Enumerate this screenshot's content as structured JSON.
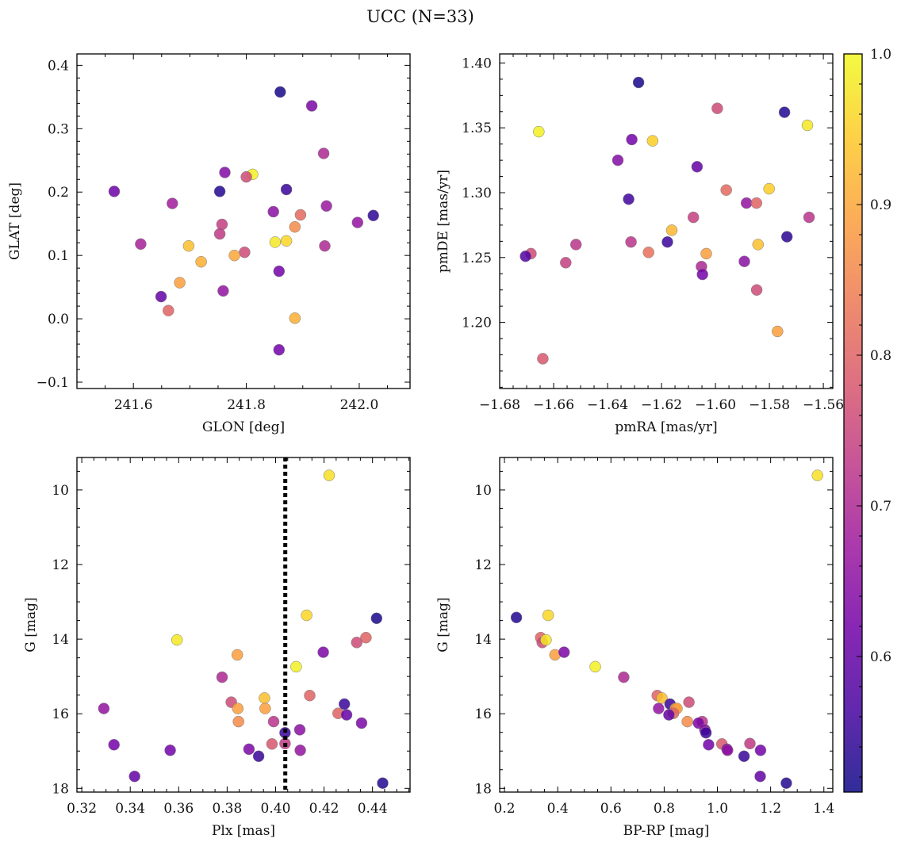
{
  "suptitle": "UCC (N=33)",
  "colorbar": {
    "vmin": 0.51,
    "vmax": 1.0,
    "ticks": [
      0.6,
      0.7,
      0.8,
      0.9,
      1.0
    ],
    "tick_labels": [
      "0.6",
      "0.7",
      "0.8",
      "0.9",
      "1.0"
    ],
    "colormap": "plasma",
    "stops": [
      "#0d0887",
      "#46039f",
      "#7201a8",
      "#9c179e",
      "#bd3786",
      "#d8576b",
      "#ed7953",
      "#fb9f3a",
      "#fdca26",
      "#f0f921"
    ]
  },
  "chart_data": [
    {
      "type": "scatter",
      "xlabel": "GLON [deg]",
      "ylabel": "GLAT [deg]",
      "xlim": [
        241.5,
        242.09
      ],
      "ylim": [
        -0.11,
        0.418
      ],
      "xticks": [
        241.6,
        241.8,
        242.0
      ],
      "xtick_labels": [
        "241.6",
        "241.8",
        "242.0"
      ],
      "yticks": [
        -0.1,
        0.0,
        0.1,
        0.2,
        0.3,
        0.4
      ],
      "ytick_labels": [
        "−0.1",
        "0.0",
        "0.1",
        "0.2",
        "0.3",
        "0.4"
      ],
      "y_inverted": false,
      "points": [
        {
          "x": 241.86,
          "y": 0.358,
          "c": 0.52
        },
        {
          "x": 241.916,
          "y": 0.336,
          "c": 0.63
        },
        {
          "x": 241.937,
          "y": 0.261,
          "c": 0.7
        },
        {
          "x": 241.762,
          "y": 0.231,
          "c": 0.64
        },
        {
          "x": 241.811,
          "y": 0.228,
          "c": 0.99
        },
        {
          "x": 241.8,
          "y": 0.224,
          "c": 0.76
        },
        {
          "x": 241.871,
          "y": 0.204,
          "c": 0.55
        },
        {
          "x": 241.566,
          "y": 0.201,
          "c": 0.61
        },
        {
          "x": 241.753,
          "y": 0.201,
          "c": 0.53
        },
        {
          "x": 241.669,
          "y": 0.182,
          "c": 0.68
        },
        {
          "x": 241.942,
          "y": 0.178,
          "c": 0.67
        },
        {
          "x": 241.848,
          "y": 0.169,
          "c": 0.65
        },
        {
          "x": 242.025,
          "y": 0.163,
          "c": 0.54
        },
        {
          "x": 241.896,
          "y": 0.164,
          "c": 0.81
        },
        {
          "x": 241.997,
          "y": 0.152,
          "c": 0.66
        },
        {
          "x": 241.757,
          "y": 0.149,
          "c": 0.74
        },
        {
          "x": 241.886,
          "y": 0.145,
          "c": 0.86
        },
        {
          "x": 241.753,
          "y": 0.134,
          "c": 0.73
        },
        {
          "x": 241.871,
          "y": 0.123,
          "c": 0.96
        },
        {
          "x": 241.851,
          "y": 0.121,
          "c": 0.98
        },
        {
          "x": 241.613,
          "y": 0.118,
          "c": 0.69
        },
        {
          "x": 241.698,
          "y": 0.115,
          "c": 0.93
        },
        {
          "x": 241.939,
          "y": 0.115,
          "c": 0.7
        },
        {
          "x": 241.797,
          "y": 0.105,
          "c": 0.76
        },
        {
          "x": 241.779,
          "y": 0.1,
          "c": 0.9
        },
        {
          "x": 241.72,
          "y": 0.09,
          "c": 0.91
        },
        {
          "x": 241.858,
          "y": 0.075,
          "c": 0.62
        },
        {
          "x": 241.682,
          "y": 0.057,
          "c": 0.89
        },
        {
          "x": 241.759,
          "y": 0.044,
          "c": 0.66
        },
        {
          "x": 241.649,
          "y": 0.035,
          "c": 0.6
        },
        {
          "x": 241.662,
          "y": 0.013,
          "c": 0.8
        },
        {
          "x": 241.886,
          "y": 0.001,
          "c": 0.91
        },
        {
          "x": 241.858,
          "y": -0.049,
          "c": 0.62
        }
      ]
    },
    {
      "type": "scatter",
      "xlabel": "pmRA [mas/yr]",
      "ylabel": "pmDE [mas/yr]",
      "xlim": [
        -1.68,
        -1.5565
      ],
      "ylim": [
        1.149,
        1.407
      ],
      "xticks": [
        -1.68,
        -1.66,
        -1.64,
        -1.62,
        -1.6,
        -1.58,
        -1.56
      ],
      "xtick_labels": [
        "−1.68",
        "−1.66",
        "−1.64",
        "−1.62",
        "−1.60",
        "−1.58",
        "−1.56"
      ],
      "yticks": [
        1.2,
        1.25,
        1.3,
        1.35,
        1.4
      ],
      "ytick_labels": [
        "1.20",
        "1.25",
        "1.30",
        "1.35",
        "1.40"
      ],
      "y_inverted": false,
      "points": [
        {
          "x": -1.6285,
          "y": 1.385,
          "c": 0.52
        },
        {
          "x": -1.5993,
          "y": 1.365,
          "c": 0.76
        },
        {
          "x": -1.5744,
          "y": 1.362,
          "c": 0.53
        },
        {
          "x": -1.5659,
          "y": 1.352,
          "c": 0.98
        },
        {
          "x": -1.6655,
          "y": 1.347,
          "c": 0.99
        },
        {
          "x": -1.631,
          "y": 1.341,
          "c": 0.62
        },
        {
          "x": -1.6233,
          "y": 1.34,
          "c": 0.95
        },
        {
          "x": -1.6362,
          "y": 1.325,
          "c": 0.64
        },
        {
          "x": -1.6068,
          "y": 1.32,
          "c": 0.6
        },
        {
          "x": -1.5801,
          "y": 1.303,
          "c": 0.95
        },
        {
          "x": -1.596,
          "y": 1.302,
          "c": 0.81
        },
        {
          "x": -1.6322,
          "y": 1.295,
          "c": 0.56
        },
        {
          "x": -1.5885,
          "y": 1.292,
          "c": 0.66
        },
        {
          "x": -1.5848,
          "y": 1.292,
          "c": 0.8
        },
        {
          "x": -1.6082,
          "y": 1.281,
          "c": 0.74
        },
        {
          "x": -1.5653,
          "y": 1.281,
          "c": 0.72
        },
        {
          "x": -1.6162,
          "y": 1.271,
          "c": 0.92
        },
        {
          "x": -1.5735,
          "y": 1.266,
          "c": 0.54
        },
        {
          "x": -1.6178,
          "y": 1.262,
          "c": 0.55
        },
        {
          "x": -1.6313,
          "y": 1.262,
          "c": 0.72
        },
        {
          "x": -1.5842,
          "y": 1.26,
          "c": 0.93
        },
        {
          "x": -1.6517,
          "y": 1.26,
          "c": 0.72
        },
        {
          "x": -1.6248,
          "y": 1.254,
          "c": 0.82
        },
        {
          "x": -1.6034,
          "y": 1.253,
          "c": 0.89
        },
        {
          "x": -1.6684,
          "y": 1.253,
          "c": 0.76
        },
        {
          "x": -1.6704,
          "y": 1.251,
          "c": 0.58
        },
        {
          "x": -1.6555,
          "y": 1.246,
          "c": 0.74
        },
        {
          "x": -1.5893,
          "y": 1.247,
          "c": 0.65
        },
        {
          "x": -1.6052,
          "y": 1.243,
          "c": 0.7
        },
        {
          "x": -1.6048,
          "y": 1.237,
          "c": 0.62
        },
        {
          "x": -1.5847,
          "y": 1.225,
          "c": 0.76
        },
        {
          "x": -1.577,
          "y": 1.193,
          "c": 0.89
        },
        {
          "x": -1.664,
          "y": 1.172,
          "c": 0.78
        }
      ]
    },
    {
      "type": "scatter",
      "xlabel": "Plx [mas]",
      "ylabel": "G [mag]",
      "xlim": [
        0.318,
        0.4555
      ],
      "ylim": [
        18.1,
        9.13
      ],
      "xticks": [
        0.32,
        0.34,
        0.36,
        0.38,
        0.4,
        0.42,
        0.44
      ],
      "xtick_labels": [
        "0.32",
        "0.34",
        "0.36",
        "0.38",
        "0.40",
        "0.42",
        "0.44"
      ],
      "yticks": [
        10,
        12,
        14,
        16,
        18
      ],
      "ytick_labels": [
        "10",
        "12",
        "14",
        "16",
        "18"
      ],
      "y_inverted": true,
      "vline": 0.404,
      "points": [
        {
          "x": 0.4221,
          "y": 9.61,
          "c": 0.97
        },
        {
          "x": 0.4128,
          "y": 13.36,
          "c": 0.96
        },
        {
          "x": 0.4417,
          "y": 13.44,
          "c": 0.52
        },
        {
          "x": 0.4373,
          "y": 13.96,
          "c": 0.8
        },
        {
          "x": 0.4335,
          "y": 14.09,
          "c": 0.76
        },
        {
          "x": 0.3593,
          "y": 14.02,
          "c": 0.98
        },
        {
          "x": 0.3842,
          "y": 14.42,
          "c": 0.89
        },
        {
          "x": 0.4197,
          "y": 14.35,
          "c": 0.63
        },
        {
          "x": 0.4085,
          "y": 14.74,
          "c": 0.99
        },
        {
          "x": 0.3779,
          "y": 15.02,
          "c": 0.7
        },
        {
          "x": 0.4141,
          "y": 15.51,
          "c": 0.8
        },
        {
          "x": 0.3954,
          "y": 15.58,
          "c": 0.93
        },
        {
          "x": 0.3817,
          "y": 15.69,
          "c": 0.76
        },
        {
          "x": 0.4284,
          "y": 15.74,
          "c": 0.55
        },
        {
          "x": 0.3844,
          "y": 15.86,
          "c": 0.89
        },
        {
          "x": 0.3957,
          "y": 15.86,
          "c": 0.89
        },
        {
          "x": 0.3291,
          "y": 15.86,
          "c": 0.66
        },
        {
          "x": 0.4258,
          "y": 15.99,
          "c": 0.8
        },
        {
          "x": 0.4293,
          "y": 16.03,
          "c": 0.6
        },
        {
          "x": 0.3847,
          "y": 16.21,
          "c": 0.86
        },
        {
          "x": 0.3992,
          "y": 16.21,
          "c": 0.72
        },
        {
          "x": 0.4355,
          "y": 16.25,
          "c": 0.63
        },
        {
          "x": 0.41,
          "y": 16.43,
          "c": 0.65
        },
        {
          "x": 0.4039,
          "y": 16.51,
          "c": 0.55
        },
        {
          "x": 0.3985,
          "y": 16.81,
          "c": 0.78
        },
        {
          "x": 0.4039,
          "y": 16.8,
          "c": 0.73
        },
        {
          "x": 0.3333,
          "y": 16.83,
          "c": 0.62
        },
        {
          "x": 0.389,
          "y": 16.95,
          "c": 0.63
        },
        {
          "x": 0.4102,
          "y": 16.98,
          "c": 0.66
        },
        {
          "x": 0.3565,
          "y": 16.98,
          "c": 0.62
        },
        {
          "x": 0.393,
          "y": 17.14,
          "c": 0.55
        },
        {
          "x": 0.3418,
          "y": 17.68,
          "c": 0.6
        },
        {
          "x": 0.4442,
          "y": 17.86,
          "c": 0.53
        }
      ]
    },
    {
      "type": "scatter",
      "xlabel": "BP-RP [mag]",
      "ylabel": "G [mag]",
      "xlim": [
        0.182,
        1.4335
      ],
      "ylim": [
        18.1,
        9.13
      ],
      "xticks": [
        0.2,
        0.4,
        0.6,
        0.8,
        1.0,
        1.2,
        1.4
      ],
      "xtick_labels": [
        "0.2",
        "0.4",
        "0.6",
        "0.8",
        "1.0",
        "1.2",
        "1.4"
      ],
      "yticks": [
        10,
        12,
        14,
        16,
        18
      ],
      "ytick_labels": [
        "10",
        "12",
        "14",
        "16",
        "18"
      ],
      "y_inverted": true,
      "points": [
        {
          "x": 1.376,
          "y": 9.61,
          "c": 0.97
        },
        {
          "x": 0.245,
          "y": 13.42,
          "c": 0.53
        },
        {
          "x": 0.364,
          "y": 13.36,
          "c": 0.96
        },
        {
          "x": 0.336,
          "y": 13.96,
          "c": 0.8
        },
        {
          "x": 0.342,
          "y": 14.09,
          "c": 0.76
        },
        {
          "x": 0.356,
          "y": 14.02,
          "c": 0.98
        },
        {
          "x": 0.39,
          "y": 14.42,
          "c": 0.89
        },
        {
          "x": 0.424,
          "y": 14.35,
          "c": 0.63
        },
        {
          "x": 0.541,
          "y": 14.74,
          "c": 0.99
        },
        {
          "x": 0.648,
          "y": 15.02,
          "c": 0.7
        },
        {
          "x": 0.774,
          "y": 15.51,
          "c": 0.8
        },
        {
          "x": 0.791,
          "y": 15.58,
          "c": 0.93
        },
        {
          "x": 0.893,
          "y": 15.69,
          "c": 0.76
        },
        {
          "x": 0.822,
          "y": 15.74,
          "c": 0.55
        },
        {
          "x": 0.779,
          "y": 15.86,
          "c": 0.66
        },
        {
          "x": 0.842,
          "y": 15.86,
          "c": 0.89
        },
        {
          "x": 0.848,
          "y": 15.86,
          "c": 0.89
        },
        {
          "x": 0.835,
          "y": 15.99,
          "c": 0.8
        },
        {
          "x": 0.818,
          "y": 16.03,
          "c": 0.6
        },
        {
          "x": 0.887,
          "y": 16.21,
          "c": 0.86
        },
        {
          "x": 0.943,
          "y": 16.21,
          "c": 0.72
        },
        {
          "x": 0.929,
          "y": 16.25,
          "c": 0.63
        },
        {
          "x": 0.953,
          "y": 16.43,
          "c": 0.65
        },
        {
          "x": 0.957,
          "y": 16.51,
          "c": 0.55
        },
        {
          "x": 1.017,
          "y": 16.81,
          "c": 0.78
        },
        {
          "x": 1.122,
          "y": 16.8,
          "c": 0.73
        },
        {
          "x": 0.967,
          "y": 16.83,
          "c": 0.62
        },
        {
          "x": 1.036,
          "y": 16.95,
          "c": 0.63
        },
        {
          "x": 1.038,
          "y": 16.98,
          "c": 0.66
        },
        {
          "x": 1.162,
          "y": 16.98,
          "c": 0.62
        },
        {
          "x": 1.1,
          "y": 17.14,
          "c": 0.55
        },
        {
          "x": 1.161,
          "y": 17.68,
          "c": 0.6
        },
        {
          "x": 1.259,
          "y": 17.86,
          "c": 0.53
        }
      ]
    }
  ]
}
